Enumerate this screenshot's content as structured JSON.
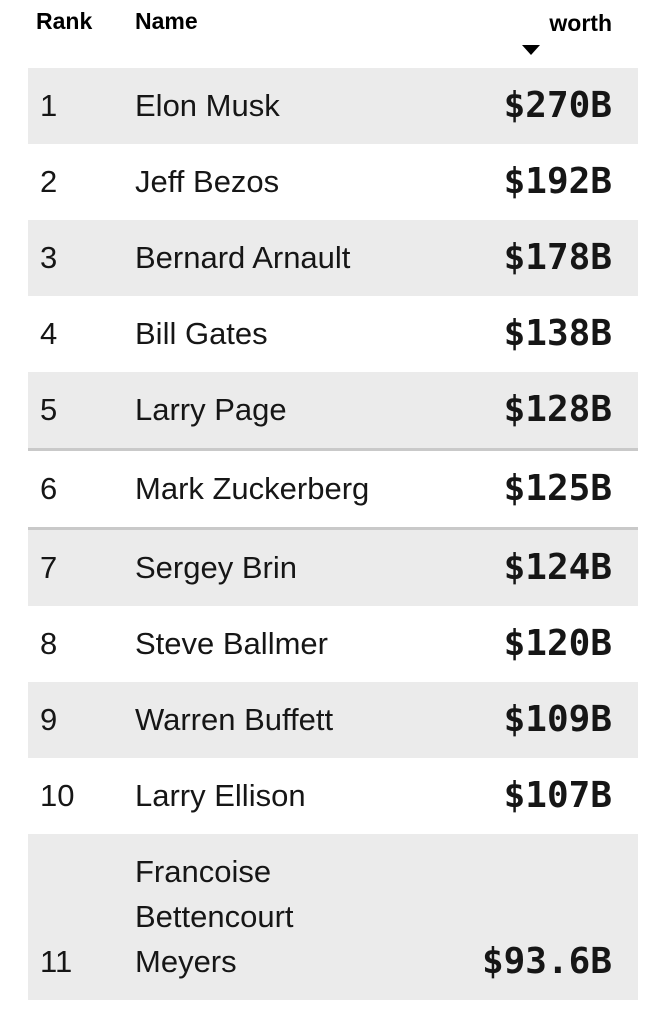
{
  "table": {
    "columns": [
      {
        "key": "rank",
        "label": "Rank"
      },
      {
        "key": "name",
        "label": "Name"
      },
      {
        "key": "worth",
        "label": "worth"
      }
    ],
    "sort": {
      "column": "worth",
      "direction": "desc",
      "icon": "triangle-down"
    },
    "rows": [
      {
        "rank": "1",
        "name": "Elon Musk",
        "worth": "$270B"
      },
      {
        "rank": "2",
        "name": "Jeff Bezos",
        "worth": "$192B"
      },
      {
        "rank": "3",
        "name": "Bernard Arnault",
        "worth": "$178B"
      },
      {
        "rank": "4",
        "name": "Bill Gates",
        "worth": "$138B"
      },
      {
        "rank": "5",
        "name": "Larry Page",
        "worth": "$128B"
      },
      {
        "rank": "6",
        "name": "Mark Zuckerberg",
        "worth": "$125B",
        "highlighted": true
      },
      {
        "rank": "7",
        "name": "Sergey Brin",
        "worth": "$124B"
      },
      {
        "rank": "8",
        "name": "Steve Ballmer",
        "worth": "$120B"
      },
      {
        "rank": "9",
        "name": "Warren Buffett",
        "worth": "$109B"
      },
      {
        "rank": "10",
        "name": "Larry Ellison",
        "worth": "$107B"
      },
      {
        "rank": "11",
        "name": "Francoise Bettencourt Meyers",
        "worth": "$93.6B"
      }
    ],
    "colors": {
      "stripe_row_bg": "#ebebeb",
      "highlight_border": "#c9c9c9",
      "header_text": "#000000",
      "body_text": "#161616",
      "page_bg": "#ffffff"
    }
  }
}
